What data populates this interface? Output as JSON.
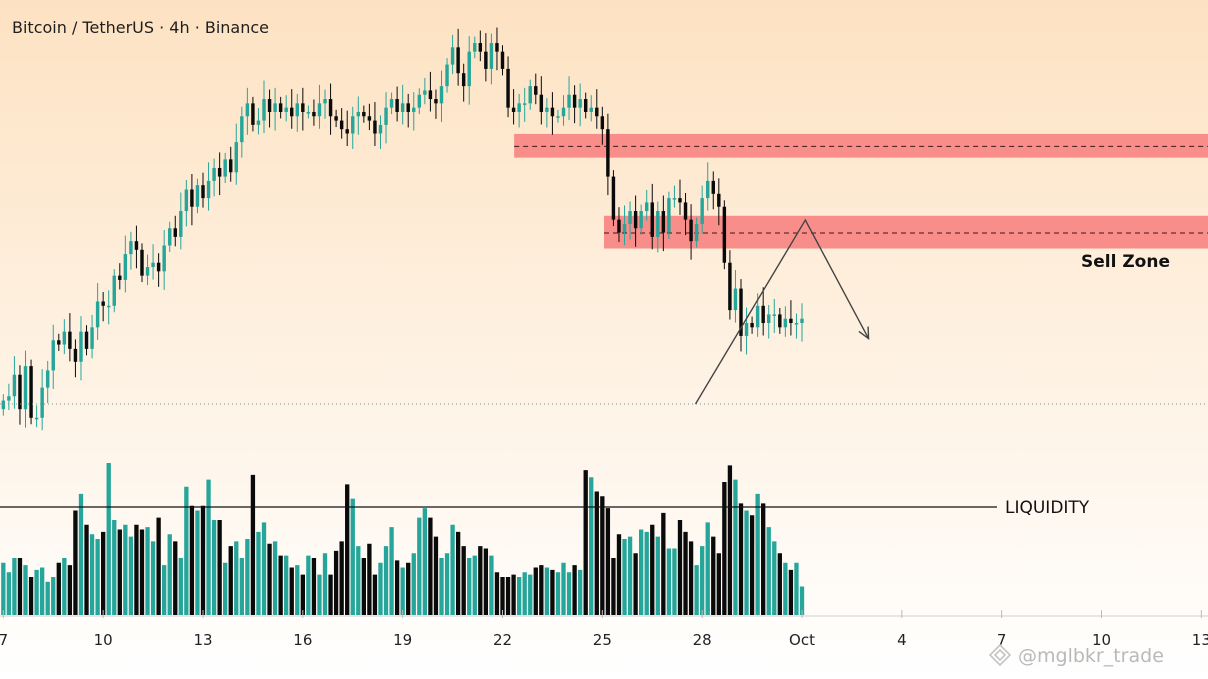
{
  "title": "Bitcoin / TetherUS · 4h · Binance",
  "watermark": "@mglbkr_trade",
  "colors": {
    "up": "#26a69a",
    "down": "#0a0a0a",
    "zone": "#f77c7c",
    "bg_top": "#fde2c2",
    "bg_bottom": "#ffffff"
  },
  "chart_data": {
    "type": "candlestick",
    "symbol": "Bitcoin / TetherUS",
    "timeframe": "4h",
    "exchange": "Binance",
    "x_tick_labels": [
      "7",
      "10",
      "13",
      "16",
      "19",
      "22",
      "25",
      "28",
      "Oct",
      "4",
      "7",
      "10",
      "13"
    ],
    "x_domain_days": [
      6.9,
      43.2
    ],
    "y_domain": [
      0,
      100
    ],
    "candles_start_day": 7.0,
    "candles_per_day": 6,
    "candles_close": [
      26,
      27,
      32,
      24,
      34,
      22,
      22,
      29,
      33,
      40,
      39,
      42,
      38,
      35,
      42,
      38,
      43,
      49,
      48,
      48,
      55,
      54,
      60,
      63,
      61,
      55,
      57,
      58,
      56,
      62,
      66,
      64,
      70,
      75,
      71,
      76,
      73,
      77,
      80,
      78,
      82,
      79,
      86,
      92,
      95,
      90,
      91,
      96,
      93,
      95,
      93,
      94,
      92,
      95,
      93,
      93,
      92,
      95,
      96,
      92,
      91,
      89,
      88,
      92,
      93,
      92,
      91,
      88,
      90,
      94,
      96,
      93,
      95,
      93,
      94,
      97,
      98,
      96,
      95,
      99,
      104,
      108,
      102,
      99,
      107,
      109,
      107,
      103,
      109,
      107,
      103,
      94,
      93,
      95,
      95,
      99,
      97,
      93,
      94,
      92,
      92,
      94,
      97,
      94,
      96,
      93,
      94,
      92,
      89,
      78,
      68,
      65,
      67,
      70,
      66,
      70,
      72,
      64,
      70,
      65,
      73,
      73,
      72,
      68,
      63,
      67,
      73,
      77,
      74,
      71,
      58,
      47,
      52,
      41,
      44,
      43,
      48,
      44,
      46,
      46,
      43,
      45,
      44,
      44,
      45
    ],
    "volume": [
      22,
      18,
      24,
      24,
      21,
      16,
      19,
      20,
      14,
      16,
      22,
      24,
      21,
      44,
      51,
      38,
      34,
      32,
      35,
      64,
      40,
      36,
      38,
      33,
      38,
      36,
      37,
      31,
      41,
      21,
      34,
      31,
      24,
      54,
      46,
      44,
      46,
      57,
      40,
      40,
      22,
      29,
      31,
      24,
      32,
      59,
      35,
      39,
      30,
      31,
      25,
      25,
      20,
      21,
      17,
      25,
      24,
      17,
      26,
      17,
      27,
      31,
      55,
      49,
      29,
      24,
      30,
      17,
      22,
      29,
      37,
      23,
      20,
      22,
      26,
      41,
      45,
      41,
      33,
      24,
      26,
      38,
      35,
      29,
      24,
      25,
      29,
      28,
      25,
      18,
      16,
      16,
      17,
      16,
      18,
      17,
      20,
      21,
      20,
      19,
      18,
      22,
      18,
      21,
      19,
      61,
      58,
      52,
      50,
      45,
      24,
      34,
      32,
      33,
      26,
      36,
      35,
      38,
      33,
      43,
      28,
      28,
      40,
      35,
      31,
      21,
      29,
      39,
      33,
      26,
      56,
      63,
      57,
      47,
      44,
      42,
      51,
      47,
      37,
      31,
      26,
      22,
      19,
      22,
      12
    ],
    "annotations": {
      "zone_upper": {
        "y_low": 82.4,
        "y_high": 87.9,
        "midline": 85.0
      },
      "sell_zone": {
        "label": "Sell Zone",
        "y_low": 61.3,
        "y_high": 68.9,
        "midline": 64.9
      },
      "liquidity": {
        "label": "LIQUIDITY",
        "level": 22.5
      },
      "projection_path": [
        [
          27.8,
          25.2
        ],
        [
          31.1,
          67.9
        ],
        [
          33.0,
          40.4
        ]
      ],
      "last_price_level": 25.2
    }
  }
}
